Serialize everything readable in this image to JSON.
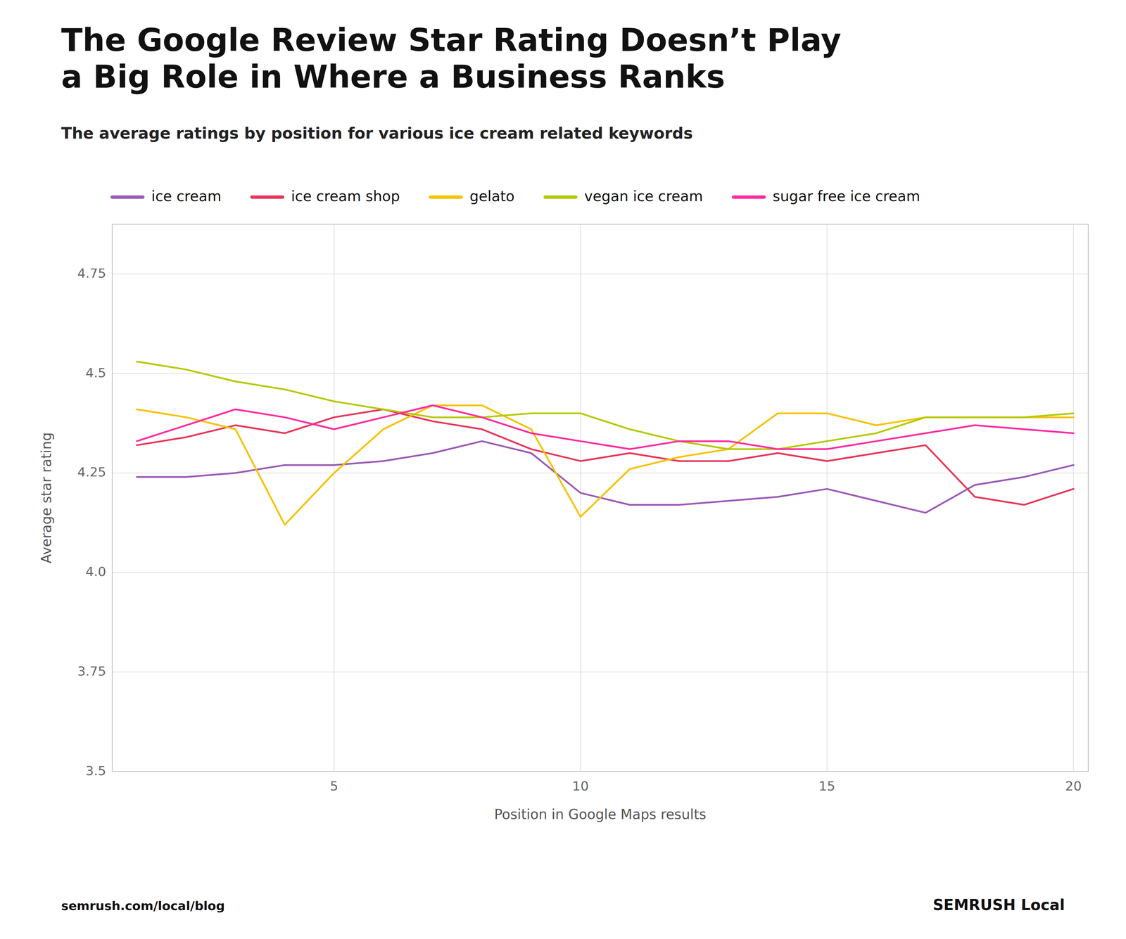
{
  "chart_data": {
    "type": "line",
    "title": "The Google Review Star Rating Doesn’t Play\na Big Role in Where a Business Ranks",
    "subtitle": "The average ratings by position for various ice cream related keywords",
    "x_label": "Position in Google Maps results",
    "y_label": "Average star rating",
    "annotations": [
      "semrush.com/local/blog",
      "SEMRUSH Local"
    ],
    "x": [
      1,
      2,
      3,
      4,
      5,
      6,
      7,
      8,
      9,
      10,
      11,
      12,
      13,
      14,
      15,
      16,
      17,
      18,
      19,
      20
    ],
    "series": [
      {
        "name": "ice cream",
        "color": "#9b59b6",
        "values": [
          4.24,
          4.24,
          4.25,
          4.27,
          4.27,
          4.28,
          4.3,
          4.33,
          4.3,
          4.2,
          4.17,
          4.17,
          4.18,
          4.19,
          4.21,
          4.18,
          4.15,
          4.22,
          4.24,
          4.27
        ]
      },
      {
        "name": "ice cream shop",
        "color": "#e8365a",
        "values": [
          4.32,
          4.34,
          4.37,
          4.35,
          4.39,
          4.41,
          4.38,
          4.36,
          4.31,
          4.28,
          4.3,
          4.28,
          4.28,
          4.3,
          4.28,
          4.3,
          4.32,
          4.19,
          4.17,
          4.21
        ]
      },
      {
        "name": "gelato",
        "color": "#f5c200",
        "values": [
          4.41,
          4.39,
          4.36,
          4.12,
          4.25,
          4.36,
          4.42,
          4.42,
          4.36,
          4.14,
          4.26,
          4.29,
          4.31,
          4.4,
          4.4,
          4.37,
          4.39,
          4.39,
          4.39,
          4.39
        ]
      },
      {
        "name": "vegan ice cream",
        "color": "#b5c900",
        "values": [
          4.53,
          4.51,
          4.48,
          4.46,
          4.43,
          4.41,
          4.39,
          4.39,
          4.4,
          4.4,
          4.36,
          4.33,
          4.31,
          4.31,
          4.33,
          4.35,
          4.39,
          4.39,
          4.39,
          4.4
        ]
      },
      {
        "name": "sugar free ice cream",
        "color": "#ff2ba0",
        "values": [
          4.33,
          4.37,
          4.41,
          4.39,
          4.36,
          4.39,
          4.42,
          4.39,
          4.35,
          4.33,
          4.31,
          4.33,
          4.33,
          4.31,
          4.31,
          4.33,
          4.35,
          4.37,
          4.36,
          4.35
        ]
      }
    ],
    "xlim": [
      0.5,
      20.3
    ],
    "ylim": [
      3.5,
      4.875
    ],
    "xticks": [
      5,
      10,
      15,
      20
    ],
    "yticks": [
      3.5,
      3.75,
      {
        "value": 4.0,
        "label": "4.0"
      },
      4.25,
      4.5,
      4.75
    ],
    "grid": true,
    "legend": "upper left"
  }
}
